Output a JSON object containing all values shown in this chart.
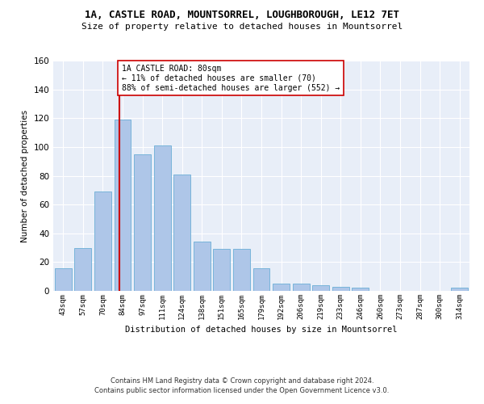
{
  "title1": "1A, CASTLE ROAD, MOUNTSORREL, LOUGHBOROUGH, LE12 7ET",
  "title2": "Size of property relative to detached houses in Mountsorrel",
  "xlabel": "Distribution of detached houses by size in Mountsorrel",
  "ylabel": "Number of detached properties",
  "categories": [
    "43sqm",
    "57sqm",
    "70sqm",
    "84sqm",
    "97sqm",
    "111sqm",
    "124sqm",
    "138sqm",
    "151sqm",
    "165sqm",
    "179sqm",
    "192sqm",
    "206sqm",
    "219sqm",
    "233sqm",
    "246sqm",
    "260sqm",
    "273sqm",
    "287sqm",
    "300sqm",
    "314sqm"
  ],
  "values": [
    16,
    30,
    69,
    119,
    95,
    101,
    81,
    34,
    29,
    29,
    16,
    5,
    5,
    4,
    3,
    2,
    0,
    0,
    0,
    0,
    2
  ],
  "bar_color": "#aec6e8",
  "bar_edgecolor": "#6baed6",
  "bg_color": "#e8eef8",
  "grid_color": "#ffffff",
  "vline_color": "#cc0000",
  "annotation_line1": "1A CASTLE ROAD: 80sqm",
  "annotation_line2": "← 11% of detached houses are smaller (70)",
  "annotation_line3": "88% of semi-detached houses are larger (552) →",
  "annotation_box_color": "#ffffff",
  "annotation_box_edgecolor": "#cc0000",
  "footer1": "Contains HM Land Registry data © Crown copyright and database right 2024.",
  "footer2": "Contains public sector information licensed under the Open Government Licence v3.0.",
  "ylim": [
    0,
    160
  ]
}
